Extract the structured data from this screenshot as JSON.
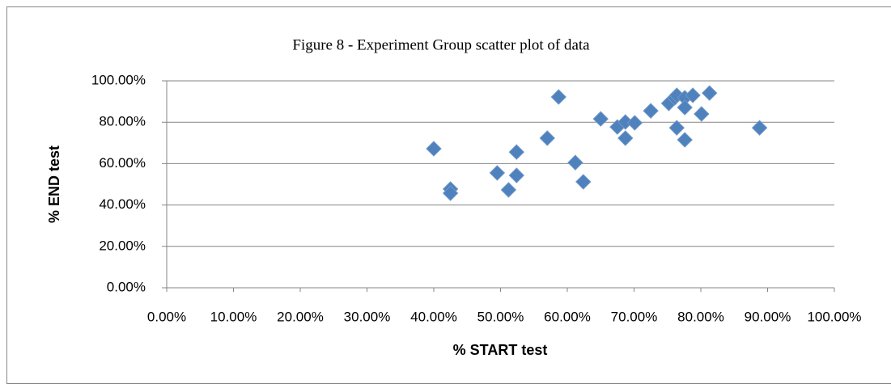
{
  "chart_data": {
    "type": "scatter",
    "title": "Figure 8 - Experiment Group scatter plot of data",
    "x_label": "% START test",
    "y_label": "% END test",
    "series": [
      {
        "color": "#4f81bd",
        "x": [
          40.0,
          42.5,
          42.5,
          49.5,
          51.2,
          52.4,
          52.4,
          57.0,
          58.7,
          61.2,
          62.4,
          65.0,
          67.5,
          68.7,
          68.7,
          70.1,
          72.5,
          75.2,
          76.1,
          76.4,
          76.4,
          77.6,
          77.6,
          77.6,
          78.8,
          80.1,
          81.3,
          88.8
        ],
        "values": [
          67.2,
          47.7,
          45.7,
          55.5,
          47.3,
          65.6,
          54.3,
          72.3,
          92.2,
          60.5,
          51.2,
          81.6,
          77.7,
          80.1,
          72.3,
          79.7,
          85.5,
          89.1,
          91.8,
          93.0,
          77.3,
          91.8,
          87.1,
          71.5,
          93.0,
          84.0,
          94.1,
          77.3
        ]
      }
    ],
    "xlim": [
      0,
      100
    ],
    "ylim": [
      0,
      100
    ],
    "xticks": [
      {
        "value": 0,
        "label": "0.00%"
      },
      {
        "value": 10,
        "label": "10.00%"
      },
      {
        "value": 20,
        "label": "20.00%"
      },
      {
        "value": 30,
        "label": "30.00%"
      },
      {
        "value": 40,
        "label": "40.00%"
      },
      {
        "value": 50,
        "label": "50.00%"
      },
      {
        "value": 60,
        "label": "60.00%"
      },
      {
        "value": 70,
        "label": "70.00%"
      },
      {
        "value": 80,
        "label": "80.00%"
      },
      {
        "value": 90,
        "label": "90.00%"
      },
      {
        "value": 100,
        "label": "100.00%"
      }
    ],
    "yticks": [
      {
        "value": 0,
        "label": "0.00%"
      },
      {
        "value": 20,
        "label": "20.00%"
      },
      {
        "value": 40,
        "label": "40.00%"
      },
      {
        "value": 60,
        "label": "60.00%"
      },
      {
        "value": 80,
        "label": "80.00%"
      },
      {
        "value": 100,
        "label": "100.00%"
      }
    ],
    "grid": true
  }
}
